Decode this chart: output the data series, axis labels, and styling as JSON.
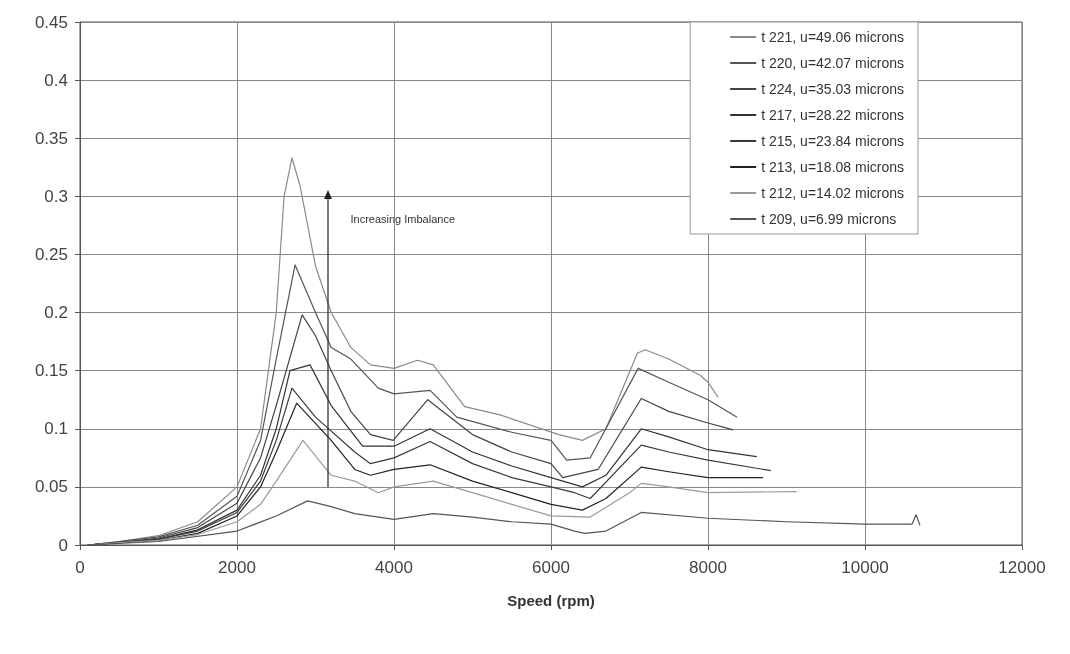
{
  "chart_data": {
    "type": "line",
    "xlabel": "Speed (rpm)",
    "xlim": [
      0,
      12000
    ],
    "xticks": [
      0,
      2000,
      4000,
      6000,
      8000,
      10000,
      12000
    ],
    "ylim": [
      0,
      0.45
    ],
    "yticks": [
      0,
      0.05,
      0.1,
      0.15,
      0.2,
      0.25,
      0.3,
      0.35,
      0.4,
      0.45
    ],
    "grid": true,
    "legend": "top right",
    "marker": "none",
    "line_style": "solid",
    "annotations": [
      "Increasing Imbalance"
    ],
    "series": [
      {
        "name": "t 221, u=49.06 microns",
        "color": "#8a8a8a",
        "x": [
          100,
          500,
          1000,
          1500,
          2000,
          2300,
          2500,
          2600,
          2700,
          2800,
          3000,
          3200,
          3450,
          3700,
          4000,
          4300,
          4500,
          4900,
          5350,
          6100,
          6400,
          6700,
          7100,
          7200,
          7500,
          7900,
          8000,
          8130
        ],
        "values": [
          0,
          0.003,
          0.008,
          0.02,
          0.05,
          0.1,
          0.2,
          0.3,
          0.333,
          0.31,
          0.24,
          0.2,
          0.17,
          0.155,
          0.152,
          0.159,
          0.155,
          0.119,
          0.112,
          0.095,
          0.09,
          0.1,
          0.165,
          0.168,
          0.16,
          0.146,
          0.14,
          0.127
        ]
      },
      {
        "name": "t 220, u=42.07 microns",
        "color": "#555555",
        "x": [
          100,
          500,
          1000,
          1500,
          2000,
          2300,
          2500,
          2740,
          3000,
          3200,
          3450,
          3800,
          4000,
          4460,
          4800,
          5500,
          6000,
          6200,
          6500,
          7110,
          7500,
          8000,
          8370
        ],
        "values": [
          0,
          0.003,
          0.007,
          0.017,
          0.042,
          0.09,
          0.16,
          0.241,
          0.2,
          0.17,
          0.16,
          0.135,
          0.13,
          0.133,
          0.11,
          0.097,
          0.09,
          0.073,
          0.075,
          0.152,
          0.14,
          0.125,
          0.11
        ]
      },
      {
        "name": "t 224, u=35.03 microns",
        "color": "#444444",
        "x": [
          100,
          500,
          1000,
          1500,
          2000,
          2300,
          2500,
          2830,
          3000,
          3200,
          3450,
          3700,
          3990,
          4430,
          5000,
          5500,
          6000,
          6150,
          6600,
          7150,
          7500,
          8000,
          8320
        ],
        "values": [
          0,
          0.002,
          0.006,
          0.015,
          0.036,
          0.075,
          0.12,
          0.198,
          0.18,
          0.15,
          0.115,
          0.095,
          0.09,
          0.125,
          0.095,
          0.08,
          0.07,
          0.058,
          0.065,
          0.126,
          0.115,
          0.105,
          0.099
        ]
      },
      {
        "name": "t 217, u=28.22 microns",
        "color": "#333333",
        "x": [
          100,
          500,
          1000,
          1500,
          2000,
          2300,
          2500,
          2675,
          2930,
          3200,
          3600,
          4000,
          4460,
          5000,
          5500,
          6000,
          6400,
          6700,
          7150,
          7500,
          8000,
          8620
        ],
        "values": [
          0,
          0.002,
          0.005,
          0.013,
          0.03,
          0.06,
          0.1,
          0.15,
          0.155,
          0.12,
          0.085,
          0.085,
          0.1,
          0.08,
          0.068,
          0.058,
          0.05,
          0.06,
          0.1,
          0.093,
          0.082,
          0.076
        ]
      },
      {
        "name": "t 215, u=23.84 microns",
        "color": "#3a3a3a",
        "x": [
          100,
          500,
          1000,
          1500,
          2000,
          2300,
          2500,
          2700,
          3000,
          3500,
          3700,
          4000,
          4460,
          5000,
          5500,
          6000,
          6300,
          6500,
          7150,
          7500,
          8000,
          8800
        ],
        "values": [
          0,
          0.002,
          0.005,
          0.012,
          0.028,
          0.055,
          0.09,
          0.135,
          0.11,
          0.08,
          0.07,
          0.075,
          0.089,
          0.07,
          0.058,
          0.05,
          0.045,
          0.04,
          0.086,
          0.08,
          0.073,
          0.064
        ]
      },
      {
        "name": "t 213, u=18.08 microns",
        "color": "#222222",
        "x": [
          100,
          500,
          1000,
          1500,
          2000,
          2300,
          2500,
          2760,
          3200,
          3500,
          3700,
          4000,
          4460,
          5000,
          5500,
          6000,
          6400,
          6700,
          7150,
          7500,
          8000,
          8700
        ],
        "values": [
          0,
          0.002,
          0.004,
          0.01,
          0.025,
          0.05,
          0.08,
          0.122,
          0.09,
          0.065,
          0.06,
          0.065,
          0.069,
          0.055,
          0.045,
          0.035,
          0.03,
          0.04,
          0.067,
          0.063,
          0.058,
          0.058
        ]
      },
      {
        "name": "t 212, u=14.02 microns",
        "color": "#9a9a9a",
        "x": [
          100,
          500,
          1000,
          1500,
          2000,
          2300,
          2500,
          2840,
          3200,
          3500,
          3800,
          4000,
          4500,
          5000,
          5500,
          6000,
          6500,
          7000,
          7150,
          7500,
          8000,
          9130
        ],
        "values": [
          0,
          0.002,
          0.004,
          0.009,
          0.02,
          0.035,
          0.055,
          0.09,
          0.06,
          0.055,
          0.045,
          0.05,
          0.055,
          0.045,
          0.035,
          0.025,
          0.024,
          0.045,
          0.053,
          0.05,
          0.045,
          0.046
        ]
      },
      {
        "name": "t 209, u=6.99 microns",
        "color": "#555555",
        "x": [
          100,
          1000,
          2000,
          2500,
          2900,
          3200,
          3500,
          4000,
          4500,
          5000,
          5500,
          6000,
          6300,
          6430,
          6700,
          7150,
          8000,
          9000,
          10000,
          10600,
          10650,
          10700
        ],
        "values": [
          0,
          0.003,
          0.012,
          0.025,
          0.038,
          0.033,
          0.027,
          0.022,
          0.027,
          0.024,
          0.02,
          0.018,
          0.012,
          0.01,
          0.012,
          0.028,
          0.023,
          0.02,
          0.018,
          0.018,
          0.026,
          0.017
        ]
      }
    ]
  }
}
